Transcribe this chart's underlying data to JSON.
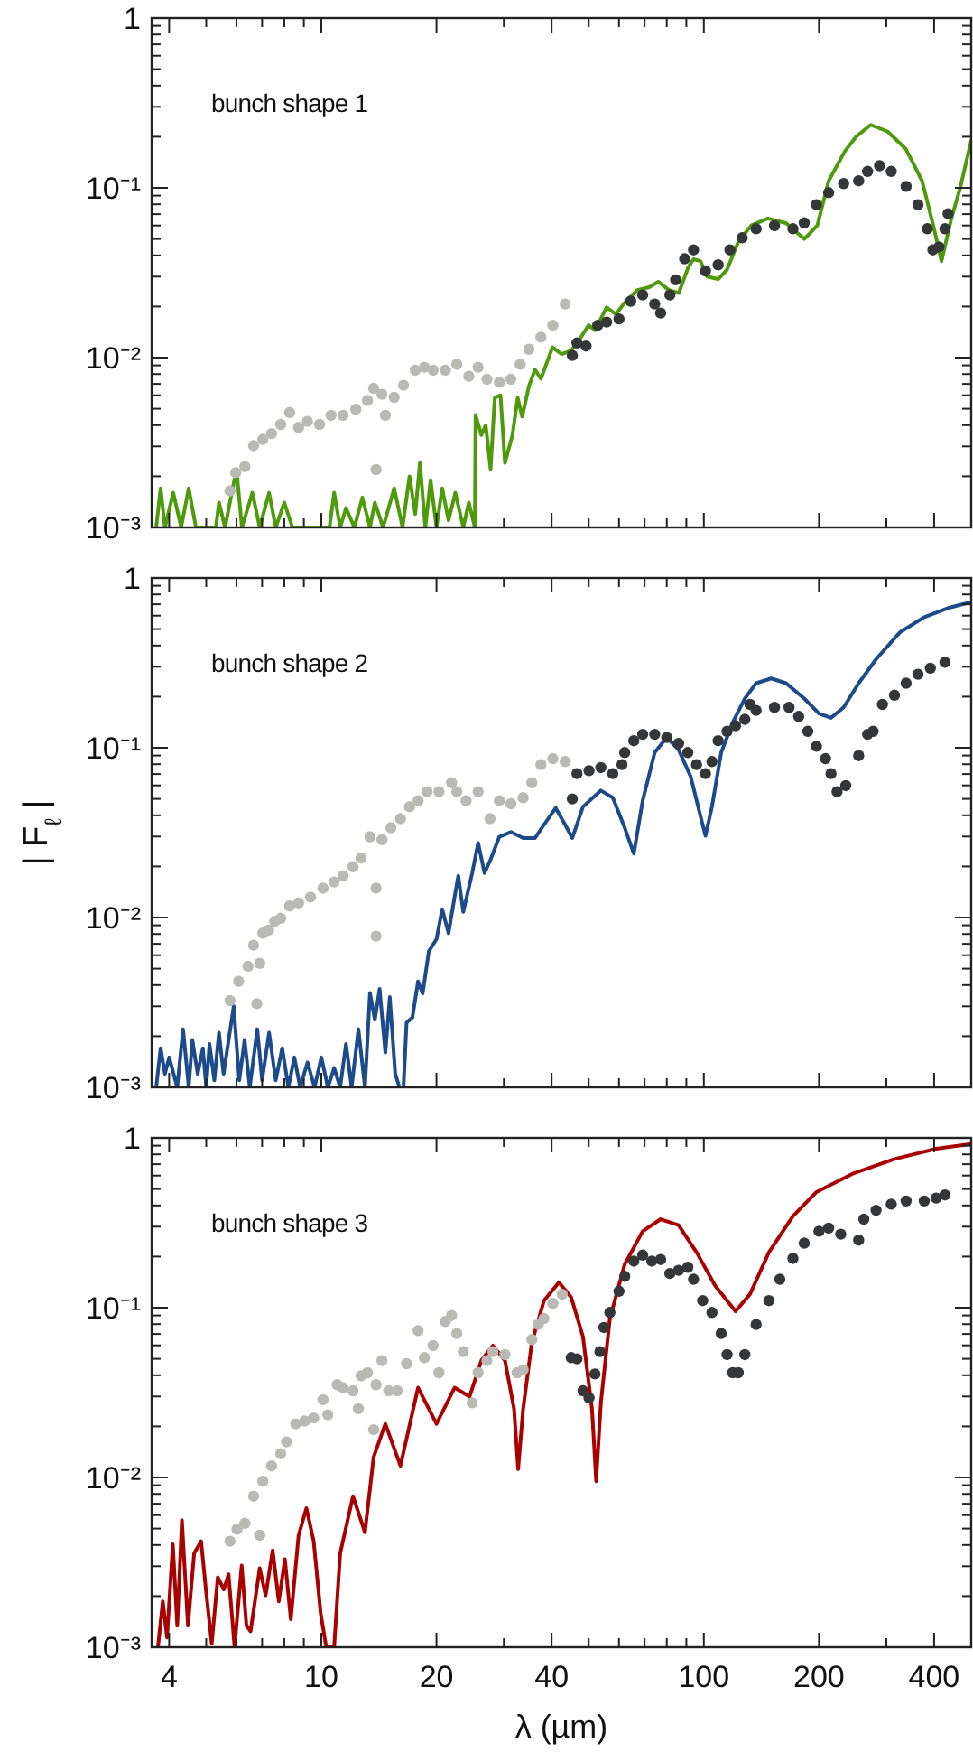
{
  "chart_data": [
    {
      "type": "line",
      "annotations": [
        "bunch shape 1"
      ],
      "xlim": [
        3.6,
        500
      ],
      "ylim": [
        0.001,
        1
      ],
      "log": "xy",
      "tick_labels": "y",
      "xticks": [
        4,
        {
          "value": 5,
          "label": null
        },
        {
          "value": 6,
          "label": null
        },
        {
          "value": 7,
          "label": null
        },
        {
          "value": 8,
          "label": null
        },
        {
          "value": 9,
          "label": null
        },
        10,
        20,
        {
          "value": 30,
          "label": null
        },
        40,
        {
          "value": 50,
          "label": null
        },
        {
          "value": 60,
          "label": null
        },
        {
          "value": 70,
          "label": null
        },
        {
          "value": 80,
          "label": null
        },
        {
          "value": 90,
          "label": null
        },
        100,
        200,
        {
          "value": 300,
          "label": null
        },
        400
      ],
      "yticks": [
        {
          "value": 0.001,
          "label": "10⁻³"
        },
        {
          "value": 0.002,
          "label": null
        },
        {
          "value": 0.003,
          "label": null
        },
        {
          "value": 0.004,
          "label": null
        },
        {
          "value": 0.005,
          "label": null
        },
        {
          "value": 0.006,
          "label": null
        },
        {
          "value": 0.007,
          "label": null
        },
        {
          "value": 0.008,
          "label": null
        },
        {
          "value": 0.009,
          "label": null
        },
        {
          "value": 0.01,
          "label": "10⁻²"
        },
        {
          "value": 0.02,
          "label": null
        },
        {
          "value": 0.03,
          "label": null
        },
        {
          "value": 0.04,
          "label": null
        },
        {
          "value": 0.05,
          "label": null
        },
        {
          "value": 0.06,
          "label": null
        },
        {
          "value": 0.07,
          "label": null
        },
        {
          "value": 0.08,
          "label": null
        },
        {
          "value": 0.09,
          "label": null
        },
        {
          "value": 0.1,
          "label": "10⁻¹"
        },
        {
          "value": 0.2,
          "label": null
        },
        {
          "value": 0.3,
          "label": null
        },
        {
          "value": 0.4,
          "label": null
        },
        {
          "value": 0.5,
          "label": null
        },
        {
          "value": 0.6,
          "label": null
        },
        {
          "value": 0.7,
          "label": null
        },
        {
          "value": 0.8,
          "label": null
        },
        {
          "value": 0.9,
          "label": null
        },
        {
          "value": 1,
          "label": "1"
        }
      ],
      "series": [
        {
          "type": "scatter",
          "marker": "circle",
          "color": "#b9bab5",
          "x": [
            5.77,
            5.97,
            6.31,
            6.65,
            7.03,
            7.41,
            7.83,
            8.26,
            8.72,
            9.2,
            9.89,
            10.6,
            11.4,
            12.3,
            13.2,
            13.7,
            13.9,
            14.4,
            14.7,
            15.5,
            16.4,
            17.6,
            18.6,
            19.6,
            21.1,
            22.6,
            24.3,
            25.7,
            27.1,
            29.2,
            31.3,
            33.1,
            34.9,
            37.5,
            40.3,
            43.4
          ],
          "values": [
            0.00164,
            0.0021,
            0.00228,
            0.00303,
            0.0033,
            0.00357,
            0.00404,
            0.00475,
            0.00388,
            0.00421,
            0.00404,
            0.00457,
            0.00457,
            0.00496,
            0.0056,
            0.00659,
            0.00219,
            0.00608,
            0.00457,
            0.00583,
            0.00687,
            0.00843,
            0.00877,
            0.00843,
            0.00843,
            0.00914,
            0.00776,
            0.00877,
            0.00745,
            0.00716,
            0.00745,
            0.00914,
            0.0112,
            0.0132,
            0.0155,
            0.0207
          ]
        },
        {
          "type": "scatter",
          "marker": "circle",
          "color": "#343638",
          "x": [
            45.3,
            46.6,
            49.2,
            52.8,
            55.7,
            60,
            64.4,
            69.2,
            74.4,
            77.1,
            81.5,
            84.4,
            89.1,
            94,
            101,
            109,
            117,
            126,
            137,
            153,
            171,
            183,
            197,
            212,
            232,
            254,
            268,
            288,
            309,
            338,
            363,
            384,
            397,
            412,
            427,
            435
          ],
          "values": [
            0.0103,
            0.0122,
            0.0117,
            0.0155,
            0.0162,
            0.0169,
            0.0215,
            0.0234,
            0.0207,
            0.0183,
            0.0234,
            0.0287,
            0.0382,
            0.0431,
            0.0324,
            0.0352,
            0.0431,
            0.0508,
            0.0574,
            0.0598,
            0.0574,
            0.0622,
            0.0796,
            0.0937,
            0.106,
            0.11,
            0.125,
            0.135,
            0.125,
            0.102,
            0.0796,
            0.0574,
            0.0431,
            0.0449,
            0.0574,
            0.0704
          ]
        },
        {
          "type": "line",
          "color": "#4e9a0c",
          "x": [
            3.7,
            3.8,
            3.9,
            4.1,
            4.3,
            4.5,
            4.7,
            5.3,
            5.4,
            5.6,
            5.8,
            6.0,
            6.2,
            6.6,
            6.9,
            7.3,
            7.6,
            8.0,
            8.4,
            10.5,
            10.8,
            11.2,
            11.6,
            12.2,
            12.8,
            13.4,
            13.8,
            14.5,
            15.5,
            16.3,
            17,
            17.6,
            18.1,
            18.7,
            19.3,
            20,
            20.7,
            21.5,
            22.4,
            23.5,
            24.3,
            25.2,
            25.3,
            26.2,
            26.9,
            27.7,
            28.4,
            29.4,
            30.2,
            31.6,
            32.6,
            33.5,
            34.9,
            36.2,
            37.5,
            40.2,
            42.5,
            45,
            47.5,
            50,
            52,
            55.7,
            58.9,
            62,
            67,
            72,
            76,
            81,
            86,
            91,
            94,
            98,
            102,
            109,
            115,
            123,
            133,
            147,
            164,
            183,
            198,
            212,
            234,
            250,
            273,
            302,
            337,
            372,
            398,
            418,
            443,
            468,
            500
          ],
          "values": [
            0.001,
            0.0017,
            0.001,
            0.0016,
            0.001,
            0.0017,
            0.001,
            0.001,
            0.0014,
            0.001,
            0.0015,
            0.0022,
            0.001,
            0.0016,
            0.001,
            0.0016,
            0.001,
            0.0014,
            0.001,
            0.001,
            0.0016,
            0.001,
            0.0013,
            0.001,
            0.0015,
            0.001,
            0.0014,
            0.001,
            0.0017,
            0.001,
            0.002,
            0.0012,
            0.0024,
            0.001,
            0.0019,
            0.001,
            0.0017,
            0.0011,
            0.0016,
            0.001,
            0.0014,
            0.001,
            0.0046,
            0.0035,
            0.004,
            0.0022,
            0.0058,
            0.006,
            0.0024,
            0.0035,
            0.0058,
            0.0045,
            0.0068,
            0.0085,
            0.0075,
            0.0115,
            0.0105,
            0.011,
            0.013,
            0.0155,
            0.0145,
            0.0198,
            0.018,
            0.021,
            0.025,
            0.026,
            0.028,
            0.025,
            0.024,
            0.034,
            0.038,
            0.037,
            0.03,
            0.029,
            0.033,
            0.048,
            0.06,
            0.066,
            0.062,
            0.05,
            0.06,
            0.11,
            0.165,
            0.2,
            0.235,
            0.215,
            0.17,
            0.11,
            0.06,
            0.037,
            0.065,
            0.1,
            0.19
          ]
        }
      ]
    },
    {
      "type": "line",
      "annotations": [
        "bunch shape 2"
      ],
      "ylabel": "| F$_{ℓ}$ |",
      "xlim": [
        3.6,
        500
      ],
      "ylim": [
        0.001,
        1
      ],
      "log": "xy",
      "tick_labels": "y",
      "xticks": [
        4,
        {
          "value": 5,
          "label": null
        },
        {
          "value": 6,
          "label": null
        },
        {
          "value": 7,
          "label": null
        },
        {
          "value": 8,
          "label": null
        },
        {
          "value": 9,
          "label": null
        },
        10,
        20,
        {
          "value": 30,
          "label": null
        },
        40,
        {
          "value": 50,
          "label": null
        },
        {
          "value": 60,
          "label": null
        },
        {
          "value": 70,
          "label": null
        },
        {
          "value": 80,
          "label": null
        },
        {
          "value": 90,
          "label": null
        },
        100,
        200,
        {
          "value": 300,
          "label": null
        },
        400
      ],
      "yticks": [
        {
          "value": 0.001,
          "label": "10⁻³"
        },
        {
          "value": 0.002,
          "label": null
        },
        {
          "value": 0.003,
          "label": null
        },
        {
          "value": 0.004,
          "label": null
        },
        {
          "value": 0.005,
          "label": null
        },
        {
          "value": 0.006,
          "label": null
        },
        {
          "value": 0.007,
          "label": null
        },
        {
          "value": 0.008,
          "label": null
        },
        {
          "value": 0.009,
          "label": null
        },
        {
          "value": 0.01,
          "label": "10⁻²"
        },
        {
          "value": 0.02,
          "label": null
        },
        {
          "value": 0.03,
          "label": null
        },
        {
          "value": 0.04,
          "label": null
        },
        {
          "value": 0.05,
          "label": null
        },
        {
          "value": 0.06,
          "label": null
        },
        {
          "value": 0.07,
          "label": null
        },
        {
          "value": 0.08,
          "label": null
        },
        {
          "value": 0.09,
          "label": null
        },
        {
          "value": 0.1,
          "label": "10⁻¹"
        },
        {
          "value": 0.2,
          "label": null
        },
        {
          "value": 0.3,
          "label": null
        },
        {
          "value": 0.4,
          "label": null
        },
        {
          "value": 0.5,
          "label": null
        },
        {
          "value": 0.6,
          "label": null
        },
        {
          "value": 0.7,
          "label": null
        },
        {
          "value": 0.8,
          "label": null
        },
        {
          "value": 0.9,
          "label": null
        },
        {
          "value": 1,
          "label": "1"
        }
      ],
      "series": [
        {
          "type": "scatter",
          "marker": "circle",
          "color": "#b9bab5",
          "x": [
            5.77,
            6.08,
            6.43,
            6.65,
            6.78,
            6.9,
            7.03,
            7.28,
            7.55,
            7.83,
            8.26,
            8.72,
            9.37,
            10.1,
            10.8,
            11.4,
            12.1,
            12.7,
            13.4,
            13.9,
            13.9,
            14.4,
            15.2,
            16.1,
            17,
            17.9,
            18.9,
            20.3,
            21.9,
            22.6,
            23.9,
            25.7,
            27.6,
            29.2,
            31.3,
            33.7,
            35.5,
            37.5,
            40.3,
            43.4
          ],
          "values": [
            0.00324,
            0.00421,
            0.00516,
            0.00687,
            0.00311,
            0.00537,
            0.00809,
            0.00843,
            0.0095,
            0.0099,
            0.0117,
            0.0122,
            0.0132,
            0.0149,
            0.0162,
            0.0176,
            0.0199,
            0.0224,
            0.0299,
            0.0149,
            0.00776,
            0.0287,
            0.0338,
            0.0382,
            0.0449,
            0.0488,
            0.0551,
            0.0551,
            0.0622,
            0.0551,
            0.0488,
            0.0551,
            0.0382,
            0.0488,
            0.0468,
            0.0508,
            0.0622,
            0.0796,
            0.0863,
            0.0829
          ]
        },
        {
          "type": "scatter",
          "marker": "circle",
          "color": "#343638",
          "x": [
            45.3,
            46.6,
            50.1,
            53.8,
            57.8,
            61.1,
            62.1,
            65.6,
            69.2,
            74.4,
            80,
            85.9,
            90.8,
            95.7,
            101,
            105,
            109,
            115,
            121,
            128,
            132,
            137,
            153,
            167,
            177,
            187,
            197,
            208,
            215,
            223,
            235,
            254,
            268,
            277,
            293,
            315,
            338,
            363,
            391,
            427
          ],
          "values": [
            0.05,
            0.0704,
            0.0733,
            0.0764,
            0.0704,
            0.0796,
            0.0937,
            0.11,
            0.12,
            0.12,
            0.115,
            0.106,
            0.0937,
            0.0796,
            0.0704,
            0.0829,
            0.11,
            0.125,
            0.135,
            0.147,
            0.18,
            0.166,
            0.173,
            0.173,
            0.153,
            0.125,
            0.102,
            0.0863,
            0.0704,
            0.0551,
            0.0598,
            0.0899,
            0.12,
            0.125,
            0.18,
            0.204,
            0.24,
            0.271,
            0.294,
            0.319
          ]
        },
        {
          "type": "line",
          "color": "#1d4a8a",
          "x": [
            3.7,
            3.8,
            3.9,
            4.0,
            4.2,
            4.35,
            4.5,
            4.6,
            4.75,
            4.9,
            5.0,
            5.1,
            5.25,
            5.4,
            5.55,
            5.9,
            6.1,
            6.3,
            6.5,
            6.8,
            7.0,
            7.3,
            7.6,
            7.9,
            8.2,
            8.5,
            8.8,
            9.2,
            9.6,
            10,
            10.4,
            10.8,
            11.2,
            11.6,
            12,
            12.5,
            13,
            13.4,
            13.8,
            14.2,
            14.7,
            15.1,
            15.6,
            16.0,
            16.4,
            16.7,
            17.3,
            17.9,
            18.4,
            19.1,
            20,
            20.7,
            21.5,
            22.3,
            22.8,
            23.5,
            24.8,
            25.7,
            26.7,
            27.6,
            29.2,
            31.3,
            33.7,
            36.2,
            38.2,
            41,
            43.4,
            45.3,
            48.3,
            53.8,
            57.8,
            62.1,
            65.6,
            69.2,
            74.4,
            80,
            85.9,
            92.4,
            97.5,
            101,
            105,
            111,
            119,
            128,
            137,
            150,
            164,
            183,
            200,
            215,
            232,
            254,
            282,
            326,
            377,
            435,
            500
          ],
          "values": [
            0.001,
            0.0017,
            0.0012,
            0.0015,
            0.001,
            0.0022,
            0.001,
            0.0019,
            0.0012,
            0.0017,
            0.001,
            0.0018,
            0.0011,
            0.0021,
            0.0012,
            0.003,
            0.0011,
            0.0019,
            0.001,
            0.0022,
            0.0011,
            0.0021,
            0.0011,
            0.0017,
            0.001,
            0.0015,
            0.001,
            0.0014,
            0.001,
            0.0015,
            0.001,
            0.0013,
            0.001,
            0.0018,
            0.001,
            0.0022,
            0.001,
            0.0036,
            0.0025,
            0.0038,
            0.0016,
            0.0034,
            0.0012,
            0.001,
            0.001,
            0.0024,
            0.00258,
            0.00421,
            0.00357,
            0.00633,
            0.00745,
            0.0112,
            0.00809,
            0.0132,
            0.0176,
            0.0108,
            0.0183,
            0.0275,
            0.0183,
            0.0215,
            0.0299,
            0.0319,
            0.0294,
            0.0294,
            0.0352,
            0.0442,
            0.0352,
            0.0294,
            0.0449,
            0.056,
            0.0508,
            0.0338,
            0.0238,
            0.0488,
            0.0937,
            0.115,
            0.0975,
            0.0676,
            0.0414,
            0.0303,
            0.0449,
            0.0937,
            0.141,
            0.195,
            0.24,
            0.256,
            0.24,
            0.195,
            0.159,
            0.15,
            0.173,
            0.24,
            0.332,
            0.48,
            0.588,
            0.665,
            0.721
          ]
        }
      ]
    },
    {
      "type": "line",
      "annotations": [
        "bunch shape 3"
      ],
      "xlabel": "λ (µm)",
      "xlim": [
        3.6,
        500
      ],
      "ylim": [
        0.001,
        1
      ],
      "log": "xy",
      "xticks": [
        4,
        {
          "value": 5,
          "label": null
        },
        {
          "value": 6,
          "label": null
        },
        {
          "value": 7,
          "label": null
        },
        {
          "value": 8,
          "label": null
        },
        {
          "value": 9,
          "label": null
        },
        10,
        20,
        {
          "value": 30,
          "label": null
        },
        40,
        {
          "value": 50,
          "label": null
        },
        {
          "value": 60,
          "label": null
        },
        {
          "value": 70,
          "label": null
        },
        {
          "value": 80,
          "label": null
        },
        {
          "value": 90,
          "label": null
        },
        100,
        200,
        {
          "value": 300,
          "label": null
        },
        400
      ],
      "yticks": [
        {
          "value": 0.001,
          "label": "10⁻³"
        },
        {
          "value": 0.002,
          "label": null
        },
        {
          "value": 0.003,
          "label": null
        },
        {
          "value": 0.004,
          "label": null
        },
        {
          "value": 0.005,
          "label": null
        },
        {
          "value": 0.006,
          "label": null
        },
        {
          "value": 0.007,
          "label": null
        },
        {
          "value": 0.008,
          "label": null
        },
        {
          "value": 0.009,
          "label": null
        },
        {
          "value": 0.01,
          "label": "10⁻²"
        },
        {
          "value": 0.02,
          "label": null
        },
        {
          "value": 0.03,
          "label": null
        },
        {
          "value": 0.04,
          "label": null
        },
        {
          "value": 0.05,
          "label": null
        },
        {
          "value": 0.06,
          "label": null
        },
        {
          "value": 0.07,
          "label": null
        },
        {
          "value": 0.08,
          "label": null
        },
        {
          "value": 0.09,
          "label": null
        },
        {
          "value": 0.1,
          "label": "10⁻¹"
        },
        {
          "value": 0.2,
          "label": null
        },
        {
          "value": 0.3,
          "label": null
        },
        {
          "value": 0.4,
          "label": null
        },
        {
          "value": 0.5,
          "label": null
        },
        {
          "value": 0.6,
          "label": null
        },
        {
          "value": 0.7,
          "label": null
        },
        {
          "value": 0.8,
          "label": null
        },
        {
          "value": 0.9,
          "label": null
        },
        {
          "value": 1,
          "label": "1"
        }
      ],
      "series": [
        {
          "type": "scatter",
          "marker": "circle",
          "color": "#b9bab5",
          "x": [
            5.77,
            6.02,
            6.31,
            6.65,
            6.9,
            7.03,
            7.41,
            7.83,
            8.11,
            8.57,
            9.04,
            9.55,
            10.1,
            10.4,
            11,
            11.4,
            12.1,
            12.5,
            12.7,
            13.2,
            13.7,
            13.9,
            14.4,
            15,
            15.8,
            16.7,
            17.9,
            18.6,
            19.6,
            20.3,
            21.1,
            21.9,
            22.6,
            23.5,
            24.8,
            25.7,
            27.1,
            28.1,
            30.2,
            32.5,
            33.7,
            35.5,
            36.9,
            38.2,
            40.3,
            42.6
          ],
          "values": [
            0.00421,
            0.00496,
            0.00537,
            0.00776,
            0.00457,
            0.0095,
            0.0117,
            0.0138,
            0.0162,
            0.0207,
            0.0215,
            0.0224,
            0.0287,
            0.0234,
            0.0352,
            0.0338,
            0.0324,
            0.0254,
            0.0397,
            0.0414,
            0.0191,
            0.0352,
            0.0488,
            0.0324,
            0.0324,
            0.0468,
            0.0733,
            0.0508,
            0.0598,
            0.0414,
            0.0829,
            0.0899,
            0.0704,
            0.0551,
            0.0275,
            0.0414,
            0.0488,
            0.0551,
            0.0529,
            0.0414,
            0.0431,
            0.0649,
            0.0796,
            0.0863,
            0.106,
            0.12
          ]
        },
        {
          "type": "scatter",
          "marker": "circle",
          "color": "#343638",
          "x": [
            45,
            46.6,
            48.3,
            50.1,
            51.9,
            53.5,
            54.8,
            56.8,
            60,
            62.1,
            65.6,
            69.2,
            73.1,
            77.1,
            81.5,
            85.9,
            90.8,
            94,
            99.3,
            105,
            111,
            115,
            119,
            123,
            128,
            137,
            148,
            158,
            171,
            183,
            200,
            212,
            228,
            254,
            262,
            282,
            309,
            338,
            377,
            405,
            427
          ],
          "values": [
            0.0508,
            0.05,
            0.0324,
            0.0294,
            0.0407,
            0.0551,
            0.0764,
            0.0937,
            0.125,
            0.153,
            0.188,
            0.204,
            0.188,
            0.192,
            0.159,
            0.166,
            0.173,
            0.147,
            0.11,
            0.0937,
            0.0704,
            0.0529,
            0.0414,
            0.0414,
            0.0529,
            0.0796,
            0.11,
            0.147,
            0.195,
            0.24,
            0.282,
            0.294,
            0.271,
            0.25,
            0.332,
            0.375,
            0.407,
            0.425,
            0.425,
            0.442,
            0.461
          ]
        },
        {
          "type": "line",
          "color": "#aa0000",
          "x": [
            3.74,
            3.85,
            3.95,
            4.09,
            4.2,
            4.32,
            4.48,
            4.65,
            4.85,
            4.99,
            5.17,
            5.36,
            5.56,
            5.72,
            5.93,
            6.19,
            6.37,
            6.53,
            6.9,
            7.15,
            7.46,
            7.74,
            8.03,
            8.32,
            8.72,
            9.14,
            9.55,
            9.96,
            10.3,
            10.8,
            11.2,
            12.1,
            13,
            13.7,
            14.7,
            16.1,
            17.9,
            20,
            22.3,
            24.4,
            26.2,
            28.1,
            30.2,
            31.9,
            32.7,
            33.7,
            35.5,
            38.2,
            41.8,
            45,
            48.3,
            51,
            52.3,
            53.8,
            56.8,
            62.1,
            69.2,
            77.1,
            85.9,
            95.7,
            107,
            121,
            132,
            148,
            171,
            197,
            244,
            315,
            405,
            500
          ],
          "values": [
            0.001,
            0.00186,
            0.00114,
            0.00404,
            0.00134,
            0.0056,
            0.00134,
            0.00357,
            0.00421,
            0.00219,
            0.00105,
            0.00258,
            0.00219,
            0.00269,
            0.001,
            0.00303,
            0.00134,
            0.00124,
            0.00292,
            0.00202,
            0.00372,
            0.00186,
            0.0033,
            0.00146,
            0.00457,
            0.00659,
            0.00421,
            0.00158,
            0.001,
            0.001,
            0.00357,
            0.00776,
            0.00475,
            0.0132,
            0.0207,
            0.0117,
            0.0338,
            0.0207,
            0.0338,
            0.0299,
            0.0488,
            0.0598,
            0.0488,
            0.0254,
            0.0112,
            0.0254,
            0.0622,
            0.11,
            0.141,
            0.115,
            0.0676,
            0.0254,
            0.0095,
            0.0275,
            0.0863,
            0.18,
            0.282,
            0.332,
            0.306,
            0.212,
            0.135,
            0.0953,
            0.12,
            0.212,
            0.346,
            0.48,
            0.613,
            0.751,
            0.863,
            0.922
          ]
        }
      ]
    }
  ]
}
